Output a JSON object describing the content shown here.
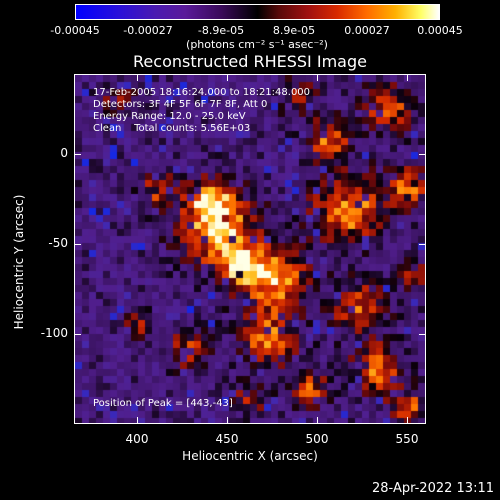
{
  "colorbar": {
    "ticks": [
      "-0.00045",
      "-0.00027",
      "-8.9e-05",
      "8.9e-05",
      "0.00027",
      "0.00045"
    ],
    "units_label": "(photons cm⁻² s⁻¹ asec⁻²)"
  },
  "title": "Reconstructed RHESSI Image",
  "info": {
    "time_range": "17-Feb-2005 18:16:24.000 to 18:21:48.000",
    "detectors": "Detectors: 3F 4F 5F 6F 7F 8F, Att 0",
    "energy": "Energy Range: 12.0 - 25.0 keV",
    "method": "Clean    Total counts: 5.56E+03",
    "peak": "Position of Peak = [443,-43]"
  },
  "axes": {
    "xlabel": "Heliocentric X (arcsec)",
    "ylabel": "Heliocentric Y (arcsec)",
    "xticks": [
      "400",
      "450",
      "500",
      "550"
    ],
    "yticks": [
      "0",
      "-50",
      "-100"
    ]
  },
  "datestamp": "28-Apr-2022 13:11"
}
